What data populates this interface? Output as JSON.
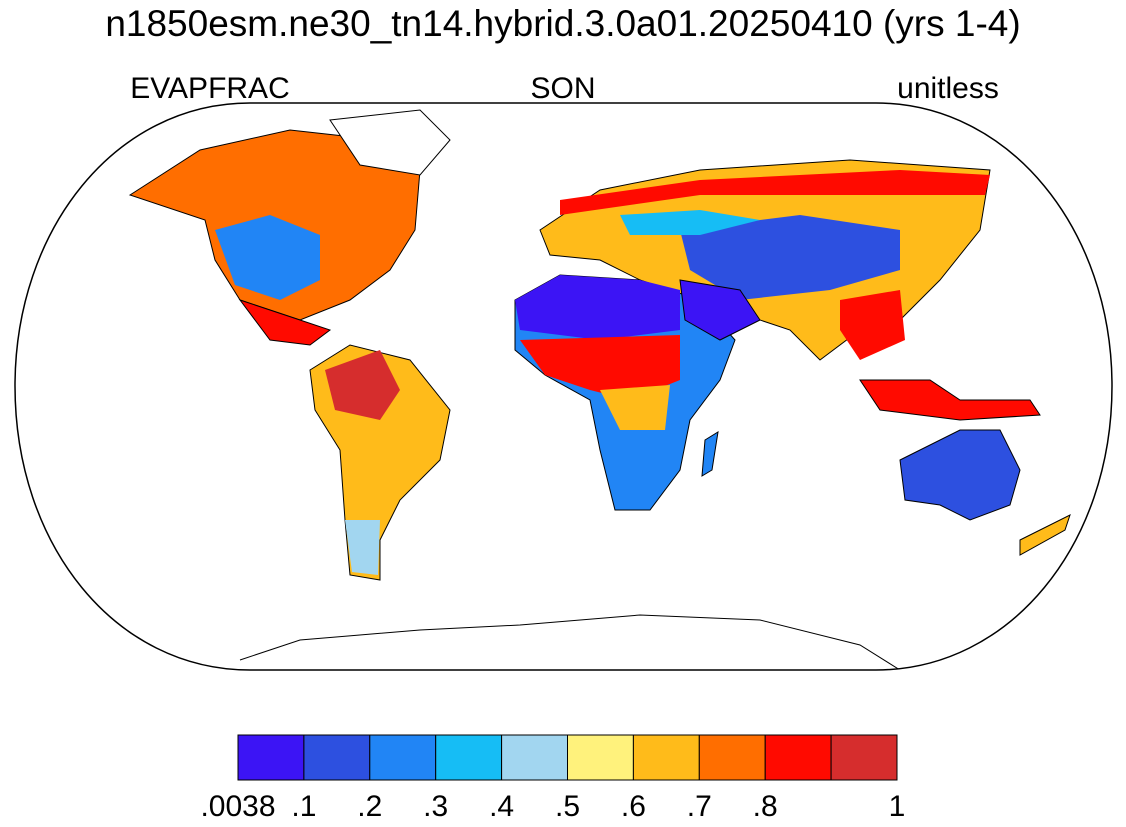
{
  "header": {
    "title": "n1850esm.ne30_tn14.hybrid.3.0a01.20250410 (yrs 1-4)",
    "left": "EVAPFRAC",
    "center": "SON",
    "right": "unitless"
  },
  "colorbar": {
    "colors": [
      "#3c14f5",
      "#2d50e0",
      "#2185f5",
      "#16bdf5",
      "#a2d6f0",
      "#fff27c",
      "#ffbb1a",
      "#ff6e00",
      "#ff0a00",
      "#d62d2d"
    ],
    "ticks": [
      {
        "value": 0.0038,
        "label": ".0038"
      },
      {
        "value": 0.1,
        "label": ".1"
      },
      {
        "value": 0.2,
        "label": ".2"
      },
      {
        "value": 0.3,
        "label": ".3"
      },
      {
        "value": 0.4,
        "label": ".4"
      },
      {
        "value": 0.5,
        "label": ".5"
      },
      {
        "value": 0.6,
        "label": ".6"
      },
      {
        "value": 0.7,
        "label": ".7"
      },
      {
        "value": 0.8,
        "label": ".8"
      },
      null,
      1
    ]
  }
}
